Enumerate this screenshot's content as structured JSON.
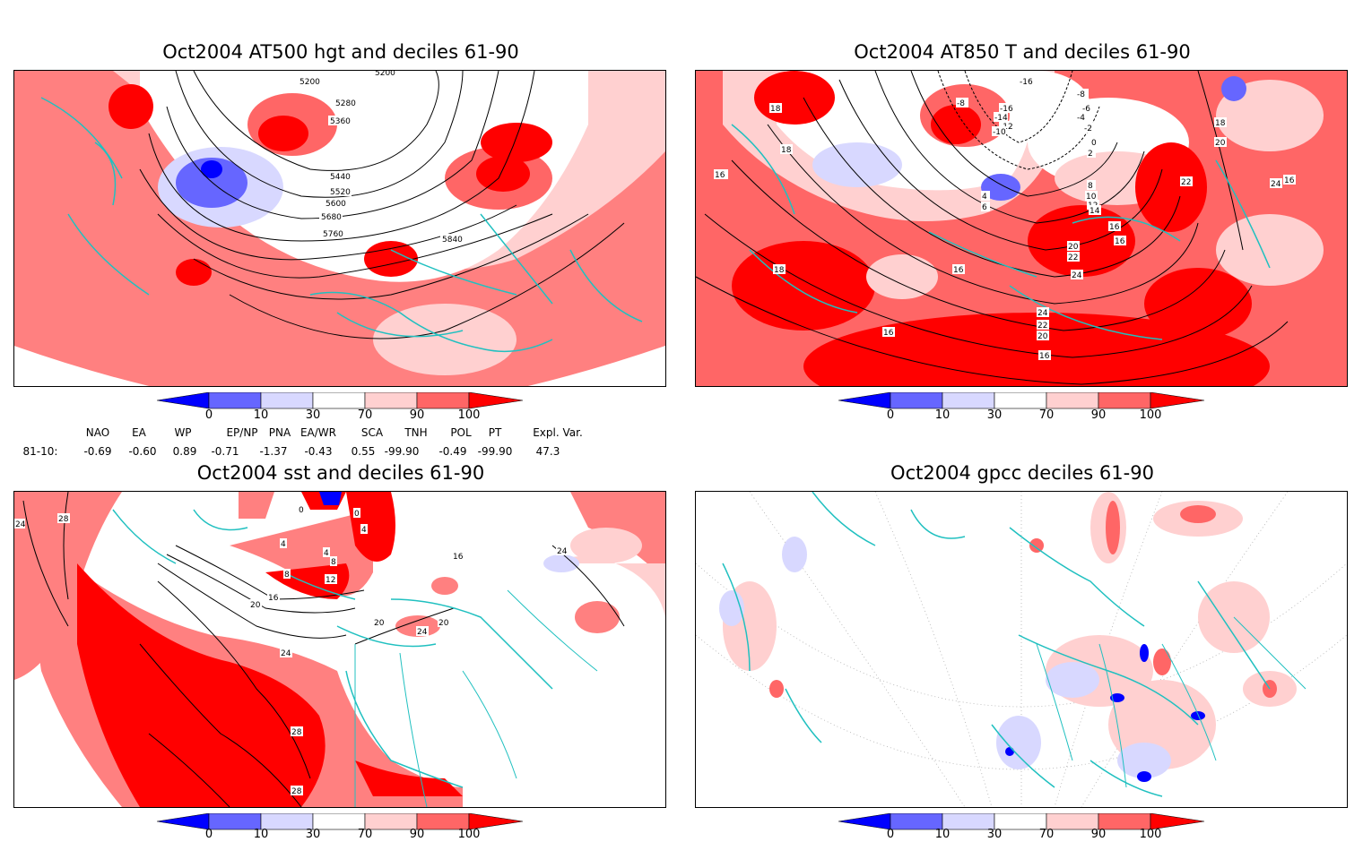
{
  "panels": {
    "tl": {
      "title": "Oct2004 AT500 hgt and deciles 61-90",
      "labels": [
        "5200",
        "5280",
        "5360",
        "5440",
        "5520",
        "5600",
        "5680",
        "5760",
        "5840",
        "5200"
      ]
    },
    "tr": {
      "title": "Oct2004 AT850 T and deciles 61-90",
      "labels": [
        "-16",
        "-8",
        "-16",
        "-14",
        "-12",
        "-10",
        "-8",
        "-6",
        "-4",
        "-2",
        "0",
        "2",
        "4",
        "6",
        "8",
        "10",
        "12",
        "14",
        "16",
        "18",
        "20",
        "22",
        "24",
        "16",
        "18",
        "18",
        "16",
        "16",
        "18",
        "20",
        "22",
        "24",
        "16",
        "24",
        "22",
        "20",
        "16",
        "16"
      ]
    },
    "bl": {
      "title": "Oct2004 sst and deciles 61-90",
      "labels": [
        "24",
        "28",
        "0",
        "4",
        "4",
        "8",
        "12",
        "16",
        "20",
        "24",
        "28",
        "28",
        "20",
        "24",
        "24",
        "8",
        "4",
        "0",
        "16",
        "20"
      ]
    },
    "br": {
      "title": "Oct2004 gpcc deciles 61-90"
    }
  },
  "colorbar": {
    "ticks": [
      "0",
      "10",
      "30",
      "70",
      "90",
      "100"
    ],
    "colors": [
      "#0000ff",
      "#6666ff",
      "#d8d8ff",
      "#ffffff",
      "#ffd0d0",
      "#ff6666",
      "#ff0000"
    ]
  },
  "indices": {
    "headers": [
      "NAO",
      "EA",
      "WP",
      "EP/NP",
      "PNA",
      "EA/WR",
      "SCA",
      "TNH",
      "POL",
      "PT",
      "Expl. Var."
    ],
    "row_label": "81-10:",
    "values": [
      "-0.69",
      "-0.60",
      "0.89",
      "-0.71",
      "-1.37",
      "-0.43",
      "0.55",
      "-99.90",
      "-0.49",
      "-99.90",
      "47.3"
    ]
  }
}
